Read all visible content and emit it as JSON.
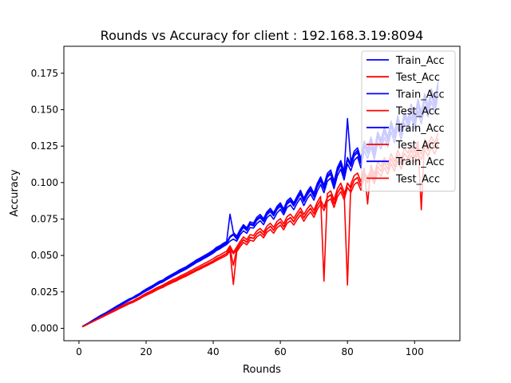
{
  "chart_data": {
    "type": "line",
    "title": "Rounds vs Accuracy for client : 192.168.3.19:8094",
    "xlabel": "Rounds",
    "ylabel": "Accuracy",
    "xlim": [
      -4.5,
      113.5
    ],
    "ylim": [
      -0.0085,
      0.1935
    ],
    "xticks": [
      0,
      20,
      40,
      60,
      80,
      100
    ],
    "yticks": [
      0.0,
      0.025,
      0.05,
      0.075,
      0.1,
      0.125,
      0.15,
      0.175
    ],
    "ytick_labels": [
      "0.000",
      "0.025",
      "0.050",
      "0.075",
      "0.100",
      "0.125",
      "0.150",
      "0.175"
    ],
    "grid": false,
    "legend_position": "upper right",
    "colors": {
      "train": "#0000ff",
      "test": "#ff0000"
    },
    "series": [
      {
        "name": "Train_Acc",
        "color": "#0000ff",
        "x_start": 1,
        "values": [
          0.0012,
          0.0025,
          0.0038,
          0.0052,
          0.0066,
          0.0079,
          0.0092,
          0.0104,
          0.0118,
          0.0131,
          0.0145,
          0.0158,
          0.0171,
          0.0184,
          0.0197,
          0.0205,
          0.0219,
          0.0231,
          0.0248,
          0.0262,
          0.0274,
          0.0286,
          0.0301,
          0.0314,
          0.0322,
          0.0339,
          0.0352,
          0.0364,
          0.0375,
          0.0389,
          0.0401,
          0.0412,
          0.0428,
          0.0441,
          0.0456,
          0.0468,
          0.0481,
          0.0493,
          0.0507,
          0.0522,
          0.0541,
          0.0552,
          0.0568,
          0.0581,
          0.0624,
          0.0641,
          0.0613,
          0.0658,
          0.0692,
          0.0671,
          0.0712,
          0.0703,
          0.0741,
          0.0759,
          0.0732,
          0.0778,
          0.0801,
          0.0772,
          0.0815,
          0.0838,
          0.0796,
          0.0852,
          0.0871,
          0.0839,
          0.0882,
          0.0921,
          0.0868,
          0.0913,
          0.0946,
          0.0902,
          0.0968,
          0.1012,
          0.0957,
          0.1036,
          0.1058,
          0.0982,
          0.1074,
          0.1121,
          0.1045,
          0.1158,
          0.1112,
          0.1183,
          0.1206,
          0.1132,
          0.1251,
          0.1198,
          0.1277,
          0.1189,
          0.1312,
          0.1262,
          0.1345,
          0.1278,
          0.1386,
          0.1309,
          0.1421,
          0.1328,
          0.1449,
          0.1392,
          0.1498,
          0.1402,
          0.1532,
          0.1441,
          0.1568,
          0.1489,
          0.1601,
          0.1512,
          0.1652
        ]
      },
      {
        "name": "Test_Acc",
        "color": "#ff0000",
        "x_start": 1,
        "values": [
          0.0011,
          0.0022,
          0.0034,
          0.0046,
          0.0058,
          0.0069,
          0.0081,
          0.0092,
          0.0104,
          0.0116,
          0.0127,
          0.0139,
          0.0151,
          0.0162,
          0.0174,
          0.0182,
          0.0195,
          0.0206,
          0.0221,
          0.0233,
          0.0244,
          0.0255,
          0.0268,
          0.0279,
          0.0288,
          0.0301,
          0.0314,
          0.0325,
          0.0334,
          0.0347,
          0.0358,
          0.0368,
          0.0381,
          0.0392,
          0.0405,
          0.0416,
          0.0428,
          0.0439,
          0.0451,
          0.0463,
          0.0479,
          0.0489,
          0.0502,
          0.0514,
          0.0551,
          0.0432,
          0.0542,
          0.0578,
          0.0609,
          0.0592,
          0.0625,
          0.0618,
          0.0649,
          0.0665,
          0.0641,
          0.0681,
          0.0701,
          0.0674,
          0.0712,
          0.0731,
          0.0698,
          0.0744,
          0.0761,
          0.0733,
          0.0771,
          0.0803,
          0.0759,
          0.0797,
          0.0824,
          0.0787,
          0.0842,
          0.0879,
          0.0834,
          0.0898,
          0.0917,
          0.0856,
          0.0931,
          0.0968,
          0.0911,
          0.0997,
          0.0962,
          0.1018,
          0.1035,
          0.0979,
          0.1069,
          0.1032,
          0.1089,
          0.1024,
          0.1112,
          0.1077,
          0.1138,
          0.1091,
          0.1165,
          0.1112,
          0.1188,
          0.1128,
          0.1201,
          0.1167,
          0.1226,
          0.1172,
          0.1244,
          0.1196,
          0.1262,
          0.1221,
          0.1278,
          0.1235,
          0.1302
        ]
      },
      {
        "name": "Train_Acc",
        "color": "#0000ff",
        "x_start": 1,
        "values": [
          0.0011,
          0.0024,
          0.0036,
          0.0051,
          0.0064,
          0.0077,
          0.0089,
          0.0102,
          0.0115,
          0.0128,
          0.0141,
          0.0153,
          0.0166,
          0.0179,
          0.0193,
          0.0204,
          0.0215,
          0.0228,
          0.0243,
          0.0256,
          0.0268,
          0.0281,
          0.0296,
          0.0309,
          0.0318,
          0.0333,
          0.0346,
          0.0359,
          0.0371,
          0.0384,
          0.0396,
          0.0407,
          0.0422,
          0.0436,
          0.0451,
          0.0462,
          0.0476,
          0.0488,
          0.0502,
          0.0516,
          0.0534,
          0.0546,
          0.0561,
          0.0575,
          0.0598,
          0.0612,
          0.0598,
          0.0641,
          0.0669,
          0.0652,
          0.0691,
          0.0688,
          0.0719,
          0.0738,
          0.0711,
          0.0759,
          0.0779,
          0.0748,
          0.0791,
          0.0816,
          0.0779,
          0.0829,
          0.0846,
          0.0814,
          0.0859,
          0.0894,
          0.0842,
          0.0889,
          0.0921,
          0.0879,
          0.0941,
          0.0987,
          0.0931,
          0.1009,
          0.1031,
          0.0958,
          0.1047,
          0.1092,
          0.1018,
          0.1128,
          0.1081,
          0.1152,
          0.1176,
          0.1101,
          0.1218,
          0.1166,
          0.1243,
          0.1158,
          0.1276,
          0.1231,
          0.1309,
          0.1243,
          0.1348,
          0.1274,
          0.1382,
          0.1293,
          0.1409,
          0.1356,
          0.1456,
          0.1366,
          0.1491,
          0.1402,
          0.1526,
          0.1451,
          0.1558,
          0.1472,
          0.1608
        ]
      },
      {
        "name": "Test_Acc",
        "color": "#ff0000",
        "x_start": 1,
        "values": [
          0.001,
          0.0021,
          0.0033,
          0.0044,
          0.0056,
          0.0067,
          0.0078,
          0.0089,
          0.0101,
          0.0112,
          0.0123,
          0.0135,
          0.0146,
          0.0157,
          0.0169,
          0.0177,
          0.0189,
          0.0201,
          0.0215,
          0.0226,
          0.0237,
          0.0248,
          0.0261,
          0.0272,
          0.0281,
          0.0294,
          0.0305,
          0.0316,
          0.0325,
          0.0338,
          0.0349,
          0.0359,
          0.0371,
          0.0383,
          0.0395,
          0.0405,
          0.0418,
          0.0428,
          0.0441,
          0.0452,
          0.0466,
          0.0477,
          0.0489,
          0.0501,
          0.0531,
          0.0301,
          0.0525,
          0.0559,
          0.0589,
          0.0573,
          0.0605,
          0.0598,
          0.0628,
          0.0644,
          0.0621,
          0.0659,
          0.0678,
          0.0652,
          0.0689,
          0.0708,
          0.0676,
          0.0721,
          0.0737,
          0.0709,
          0.0746,
          0.0778,
          0.0735,
          0.0772,
          0.0799,
          0.0762,
          0.0815,
          0.0852,
          0.0808,
          0.0871,
          0.0889,
          0.0829,
          0.0902,
          0.0938,
          0.0883,
          0.0966,
          0.0932,
          0.0986,
          0.1003,
          0.0948,
          0.1036,
          0.1001,
          0.1055,
          0.0992,
          0.1078,
          0.1044,
          0.1103,
          0.1057,
          0.1129,
          0.1078,
          0.1151,
          0.1093,
          0.1164,
          0.1131,
          0.1188,
          0.1136,
          0.1206,
          0.1159,
          0.1223,
          0.1183,
          0.1239,
          0.1197,
          0.1262
        ]
      },
      {
        "name": "Train_Acc",
        "color": "#0000ff",
        "x_start": 1,
        "values": [
          0.0013,
          0.0026,
          0.0039,
          0.0054,
          0.0068,
          0.0082,
          0.0095,
          0.0107,
          0.0121,
          0.0135,
          0.0149,
          0.0162,
          0.0176,
          0.0189,
          0.0202,
          0.0211,
          0.0226,
          0.0238,
          0.0255,
          0.0269,
          0.0282,
          0.0294,
          0.0309,
          0.0323,
          0.0331,
          0.0348,
          0.0361,
          0.0374,
          0.0386,
          0.0401,
          0.0412,
          0.0423,
          0.0439,
          0.0453,
          0.0469,
          0.0481,
          0.0494,
          0.0507,
          0.0521,
          0.0536,
          0.0556,
          0.0567,
          0.0583,
          0.0596,
          0.0783,
          0.0658,
          0.0632,
          0.0676,
          0.0711,
          0.0689,
          0.0731,
          0.0722,
          0.0762,
          0.0781,
          0.0752,
          0.0799,
          0.0823,
          0.0793,
          0.0837,
          0.0861,
          0.0818,
          0.0875,
          0.0895,
          0.0861,
          0.0906,
          0.0947,
          0.0891,
          0.0938,
          0.0972,
          0.0927,
          0.0994,
          0.1039,
          0.0983,
          0.1063,
          0.1086,
          0.1009,
          0.1103,
          0.1151,
          0.1073,
          0.1439,
          0.1141,
          0.1214,
          0.1238,
          0.1162,
          0.1284,
          0.1229,
          0.1311,
          0.1221,
          0.1347,
          0.1295,
          0.1381,
          0.1311,
          0.1422,
          0.1344,
          0.1459,
          0.1364,
          0.1488,
          0.1429,
          0.1538,
          0.1439,
          0.1572,
          0.1478,
          0.1609,
          0.1528,
          0.1643,
          0.1552,
          0.1695
        ]
      },
      {
        "name": "Test_Acc",
        "color": "#ff0000",
        "x_start": 1,
        "values": [
          0.0012,
          0.0023,
          0.0035,
          0.0048,
          0.006,
          0.0071,
          0.0084,
          0.0095,
          0.0107,
          0.012,
          0.0131,
          0.0143,
          0.0156,
          0.0167,
          0.0179,
          0.0187,
          0.0201,
          0.0212,
          0.0227,
          0.024,
          0.0251,
          0.0263,
          0.0276,
          0.0287,
          0.0297,
          0.031,
          0.0323,
          0.0335,
          0.0344,
          0.0357,
          0.0368,
          0.0379,
          0.0392,
          0.0404,
          0.0417,
          0.0428,
          0.0441,
          0.0452,
          0.0465,
          0.0477,
          0.0493,
          0.0503,
          0.0517,
          0.0529,
          0.0566,
          0.0521,
          0.0558,
          0.0595,
          0.0627,
          0.0609,
          0.0643,
          0.0636,
          0.0668,
          0.0685,
          0.0659,
          0.0701,
          0.0721,
          0.0693,
          0.0733,
          0.0752,
          0.0718,
          0.0766,
          0.0783,
          0.0754,
          0.0793,
          0.0826,
          0.0781,
          0.082,
          0.0848,
          0.0809,
          0.0866,
          0.0904,
          0.0324,
          0.0924,
          0.0943,
          0.0881,
          0.0958,
          0.0996,
          0.0937,
          0.0298,
          0.0989,
          0.1047,
          0.1065,
          0.1007,
          0.1099,
          0.0853,
          0.112,
          0.1053,
          0.1144,
          0.1108,
          0.1171,
          0.1122,
          0.1198,
          0.1144,
          0.1222,
          0.116,
          0.1236,
          0.1201,
          0.1261,
          0.1206,
          0.128,
          0.0814,
          0.1298,
          0.1256,
          0.1315,
          0.1271,
          0.1339
        ]
      },
      {
        "name": "Train_Acc",
        "color": "#0000ff",
        "x_start": 1,
        "values": [
          0.0012,
          0.0025,
          0.0037,
          0.0053,
          0.0065,
          0.008,
          0.0093,
          0.0105,
          0.0119,
          0.0132,
          0.0146,
          0.0159,
          0.0172,
          0.0186,
          0.0199,
          0.0207,
          0.0221,
          0.0234,
          0.0251,
          0.0265,
          0.0277,
          0.029,
          0.0305,
          0.0318,
          0.0326,
          0.0343,
          0.0356,
          0.0369,
          0.038,
          0.0395,
          0.0406,
          0.0417,
          0.0433,
          0.0447,
          0.0462,
          0.0474,
          0.0487,
          0.05,
          0.0514,
          0.0529,
          0.0548,
          0.0559,
          0.0575,
          0.0588,
          0.0631,
          0.0648,
          0.062,
          0.0665,
          0.07,
          0.0678,
          0.072,
          0.0711,
          0.075,
          0.0768,
          0.074,
          0.0787,
          0.081,
          0.078,
          0.0824,
          0.0848,
          0.0805,
          0.0862,
          0.0882,
          0.0848,
          0.0893,
          0.0932,
          0.0877,
          0.0923,
          0.0957,
          0.0913,
          0.0979,
          0.1024,
          0.0968,
          0.1048,
          0.107,
          0.0993,
          0.1087,
          0.1134,
          0.1057,
          0.1172,
          0.1124,
          0.1196,
          0.122,
          0.1145,
          0.1265,
          0.1211,
          0.1292,
          0.1202,
          0.1327,
          0.1277,
          0.1361,
          0.1292,
          0.1403,
          0.1325,
          0.1438,
          0.1344,
          0.1467,
          0.1408,
          0.1518,
          0.1419,
          0.1551,
          0.1458,
          0.1587,
          0.1507,
          0.162,
          0.153,
          0.1671
        ]
      },
      {
        "name": "Test_Acc",
        "color": "#ff0000",
        "x_start": 1,
        "values": [
          0.0011,
          0.0022,
          0.0034,
          0.0046,
          0.0057,
          0.0068,
          0.008,
          0.0091,
          0.0103,
          0.0114,
          0.0125,
          0.0137,
          0.0149,
          0.016,
          0.0172,
          0.018,
          0.0193,
          0.0204,
          0.0219,
          0.0231,
          0.0242,
          0.0253,
          0.0266,
          0.0277,
          0.0286,
          0.0299,
          0.0312,
          0.0323,
          0.0332,
          0.0345,
          0.0356,
          0.0366,
          0.0379,
          0.039,
          0.0403,
          0.0414,
          0.0426,
          0.0437,
          0.0449,
          0.0461,
          0.0476,
          0.0487,
          0.05,
          0.0512,
          0.0546,
          0.0512,
          0.054,
          0.0576,
          0.0607,
          0.059,
          0.0623,
          0.0616,
          0.0647,
          0.0663,
          0.0639,
          0.0679,
          0.0699,
          0.0672,
          0.071,
          0.0729,
          0.0696,
          0.0742,
          0.0759,
          0.0731,
          0.0769,
          0.0801,
          0.0757,
          0.0795,
          0.0822,
          0.0785,
          0.084,
          0.0877,
          0.0832,
          0.0896,
          0.0915,
          0.0854,
          0.0929,
          0.0966,
          0.0909,
          0.0995,
          0.096,
          0.1016,
          0.1033,
          0.0977,
          0.1067,
          0.103,
          0.1087,
          0.1022,
          0.111,
          0.1075,
          0.1136,
          0.1089,
          0.1163,
          0.111,
          0.1186,
          0.1126,
          0.1199,
          0.1165,
          0.1224,
          0.117,
          0.1242,
          0.1194,
          0.126,
          0.1219,
          0.1276,
          0.1233,
          0.13
        ]
      }
    ]
  }
}
